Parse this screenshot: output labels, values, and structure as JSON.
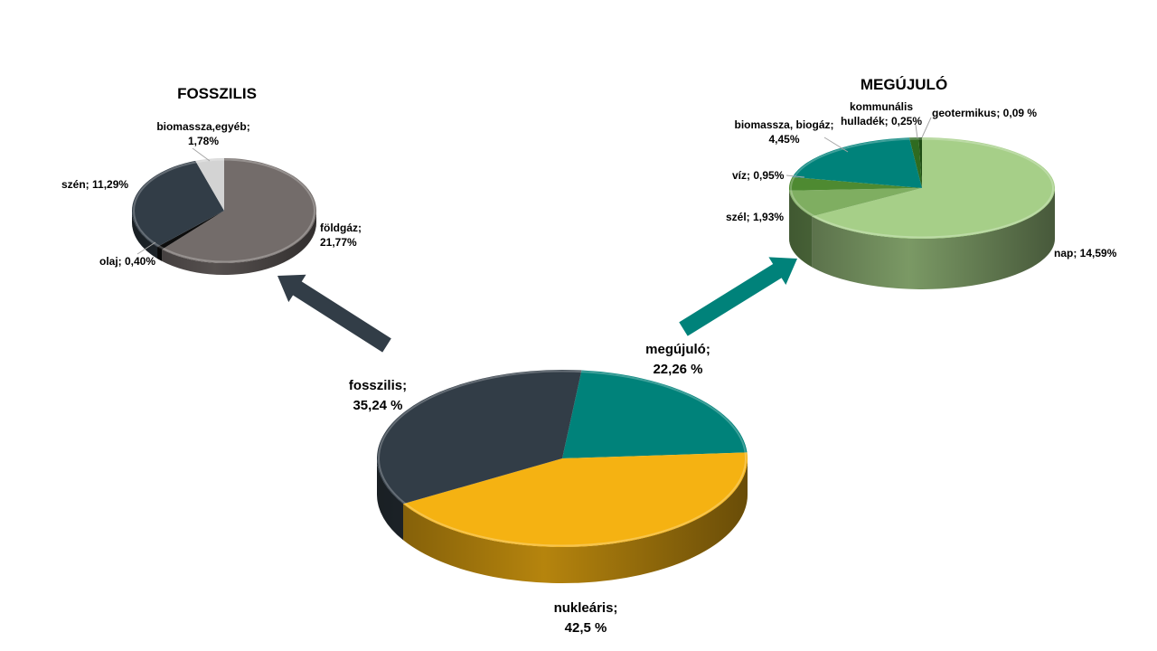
{
  "chart_data": [
    {
      "type": "pie",
      "id": "main",
      "title": "",
      "slices": [
        {
          "label": "megújuló",
          "value": 22.26,
          "value_text": "22,26 %",
          "color": "#00827a"
        },
        {
          "label": "nukleáris",
          "value": 42.5,
          "value_text": "42,5 %",
          "color": "#f5b212"
        },
        {
          "label": "fosszilis",
          "value": 35.24,
          "value_text": "35,24 %",
          "color": "#323d47"
        }
      ],
      "style": "3d"
    },
    {
      "type": "pie",
      "id": "fossil",
      "title": "FOSSZILIS",
      "slices": [
        {
          "label": "földgáz",
          "value": 21.77,
          "value_text": "21,77%",
          "color": "#736c6a"
        },
        {
          "label": "olaj",
          "value": 0.4,
          "value_text": "0,40%",
          "color": "#0d0d0d"
        },
        {
          "label": "szén",
          "value": 11.29,
          "value_text": "11,29%",
          "color": "#323d47"
        },
        {
          "label": "biomassza,egyéb",
          "value": 1.78,
          "value_text": "1,78%",
          "color": "#d3d3d3"
        }
      ],
      "style": "3d"
    },
    {
      "type": "pie",
      "id": "renewable",
      "title": "MEGÚJULÓ",
      "slices": [
        {
          "label": "nap",
          "value": 14.59,
          "value_text": "14,59%",
          "color": "#a6cf88"
        },
        {
          "label": "szél",
          "value": 1.93,
          "value_text": "1,93%",
          "color": "#7fae61"
        },
        {
          "label": "víz",
          "value": 0.95,
          "value_text": "0,95%",
          "color": "#4e8a31"
        },
        {
          "label": "biomassza, biogáz",
          "value": 4.45,
          "value_text": "4,45%",
          "color": "#00827a"
        },
        {
          "label": "kommunális hulladék",
          "value": 0.25,
          "value_text": "0,25%",
          "color": "#2f6b20"
        },
        {
          "label": "geotermikus",
          "value": 0.09,
          "value_text": "0,09 %",
          "color": "#1f4d14"
        }
      ],
      "style": "3d"
    }
  ],
  "labels": {
    "main_megujulo": {
      "name": "megújuló;",
      "value": "22,26 %"
    },
    "main_nuklearis": {
      "name": "nukleáris;",
      "value": "42,5 %"
    },
    "main_fosszilis": {
      "name": "fosszilis;",
      "value": "35,24 %"
    },
    "fossil_title": "FOSSZILIS",
    "fossil_biomassza": {
      "name": "biomassza,egyéb;",
      "value": "1,78%"
    },
    "fossil_szen": "szén; 11,29%",
    "fossil_foldgaz": {
      "name": "földgáz;",
      "value": "21,77%"
    },
    "fossil_olaj": "olaj; 0,40%",
    "ren_title": "MEGÚJULÓ",
    "ren_komm": {
      "name": "kommunális",
      "value": "hulladék; 0,25%"
    },
    "ren_geo": "geotermikus; 0,09 %",
    "ren_biomassza": {
      "name": "biomassza, biogáz;",
      "value": "4,45%"
    },
    "ren_viz": "víz; 0,95%",
    "ren_szel": "szél; 1,93%",
    "ren_nap": "nap; 14,59%"
  },
  "arrow_colors": {
    "fossil": "#323d47",
    "renewable": "#00827a"
  }
}
